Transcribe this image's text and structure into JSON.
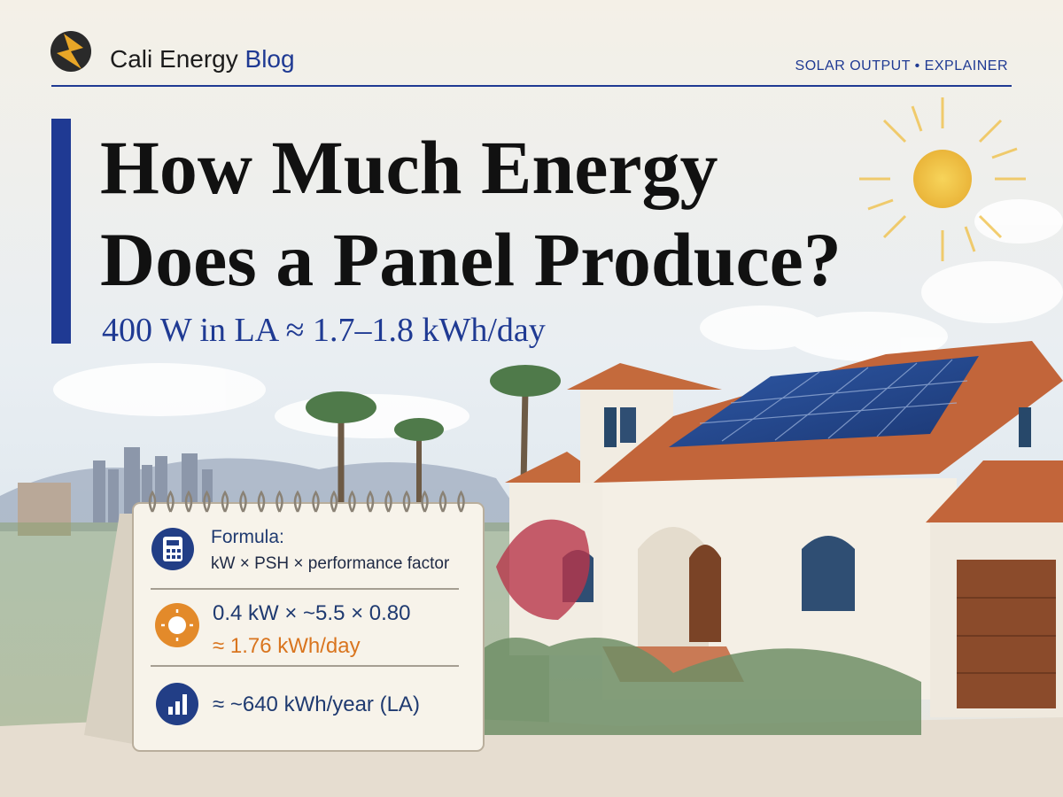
{
  "header": {
    "brand": "Cali Energy",
    "brand_accent": "Blog",
    "tag": "SOLAR OUTPUT • EXPLAINER"
  },
  "hero": {
    "title_lines": [
      "How Much Energy",
      "Does a Panel Produce?"
    ],
    "subtitle": "400 W in LA ≈ 1.7–1.8 kWh/day"
  },
  "card": {
    "rows": [
      {
        "label": "Formula:",
        "text": "kW × PSH × performance factor"
      },
      {
        "label": "0.4 kW × ~5.5 × 0.80",
        "text": "≈ 1.76 kWh/day"
      },
      {
        "label": "≈ ~640 kWh/year (LA)"
      }
    ]
  }
}
